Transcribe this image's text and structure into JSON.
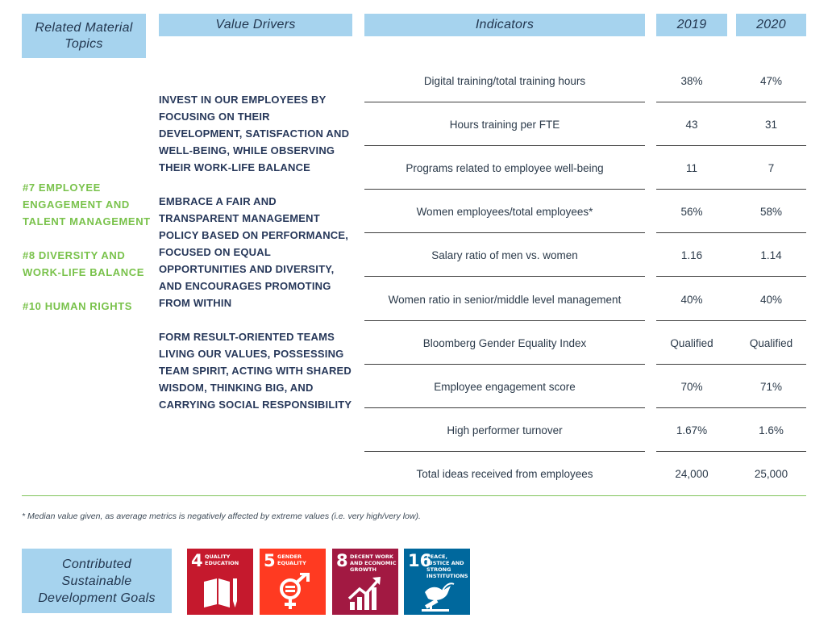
{
  "headers": {
    "topics": "Related Material\nTopics",
    "drivers": "Value Drivers",
    "indicators": "Indicators",
    "year1": "2019",
    "year2": "2020"
  },
  "material_topics": [
    "#7 EMPLOYEE ENGAGEMENT AND TALENT MANAGEMENT",
    "#8 DIVERSITY AND WORK-LIFE BALANCE",
    "#10 HUMAN RIGHTS"
  ],
  "value_drivers": [
    "INVEST IN OUR EMPLOYEES BY FOCUSING ON THEIR DEVELOPMENT, SATISFACTION AND WELL-BEING, WHILE OBSERVING THEIR WORK-LIFE BALANCE",
    "EMBRACE A FAIR AND TRANSPARENT MANAGEMENT POLICY BASED ON PERFORMANCE, FOCUSED ON EQUAL OPPORTUNITIES AND DIVERSITY, AND ENCOURAGES PROMOTING FROM WITHIN",
    "FORM RESULT-ORIENTED TEAMS LIVING OUR VALUES, POSSESSING TEAM SPIRIT, ACTING WITH SHARED WISDOM, THINKING BIG, AND CARRYING SOCIAL RESPONSIBILITY"
  ],
  "rows": [
    {
      "indicator": "Digital training/total training hours",
      "v2019": "38%",
      "v2020": "47%"
    },
    {
      "indicator": "Hours training per FTE",
      "v2019": "43",
      "v2020": "31"
    },
    {
      "indicator": "Programs related to employee well-being",
      "v2019": "11",
      "v2020": "7"
    },
    {
      "indicator": "Women employees/total employees*",
      "v2019": "56%",
      "v2020": "58%"
    },
    {
      "indicator": "Salary ratio of men vs. women",
      "v2019": "1.16",
      "v2020": "1.14"
    },
    {
      "indicator": "Women ratio in senior/middle level management",
      "v2019": "40%",
      "v2020": "40%"
    },
    {
      "indicator": "Bloomberg Gender Equality Index",
      "v2019": "Qualified",
      "v2020": "Qualified"
    },
    {
      "indicator": "Employee engagement score",
      "v2019": "70%",
      "v2020": "71%"
    },
    {
      "indicator": "High performer turnover",
      "v2019": "1.67%",
      "v2020": "1.6%"
    },
    {
      "indicator": "Total ideas received from employees",
      "v2019": "24,000",
      "v2020": "25,000"
    }
  ],
  "footnote": "* Median value given, as average metrics is negatively affected by extreme values (i.e. very high/very low).",
  "sdg_heading": "Contributed\nSustainable\nDevelopment Goals",
  "sdgs": [
    {
      "number": "4",
      "title": "QUALITY EDUCATION",
      "color": "#c5192d",
      "icon": "book-pencil-icon"
    },
    {
      "number": "5",
      "title": "GENDER EQUALITY",
      "color": "#ff3a21",
      "icon": "gender-equality-icon"
    },
    {
      "number": "8",
      "title": "DECENT WORK AND ECONOMIC GROWTH",
      "color": "#a21942",
      "icon": "growth-chart-icon"
    },
    {
      "number": "16",
      "title": "PEACE, JUSTICE AND STRONG INSTITUTIONS",
      "color": "#00689d",
      "icon": "dove-gavel-icon"
    }
  ]
}
